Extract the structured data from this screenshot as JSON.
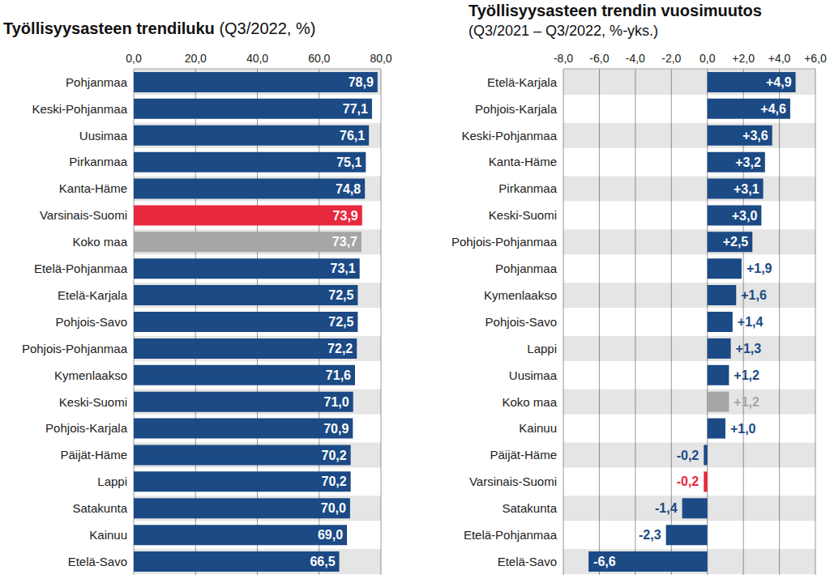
{
  "chart_data": [
    {
      "type": "bar",
      "orientation": "horizontal",
      "title": "Työllisyysasteen trendiluku",
      "subtitle": "(Q3/2022, %)",
      "categories": [
        "Pohjanmaa",
        "Keski-Pohjanmaa",
        "Uusimaa",
        "Pirkanmaa",
        "Kanta-Häme",
        "Varsinais-Suomi",
        "Koko maa",
        "Etelä-Pohjanmaa",
        "Etelä-Karjala",
        "Pohjois-Savo",
        "Pohjois-Pohjanmaa",
        "Kymenlaakso",
        "Keski-Suomi",
        "Pohjois-Karjala",
        "Päijät-Häme",
        "Lappi",
        "Satakunta",
        "Kainuu",
        "Etelä-Savo"
      ],
      "values": [
        78.9,
        77.1,
        76.1,
        75.1,
        74.8,
        73.9,
        73.7,
        73.1,
        72.5,
        72.5,
        72.2,
        71.6,
        71.0,
        70.9,
        70.2,
        70.2,
        70.0,
        69.0,
        66.5
      ],
      "value_labels": [
        "78,9",
        "77,1",
        "76,1",
        "75,1",
        "74,8",
        "73,9",
        "73,7",
        "73,1",
        "72,5",
        "72,5",
        "72,2",
        "71,6",
        "71,0",
        "70,9",
        "70,2",
        "70,2",
        "70,0",
        "69,0",
        "66,5"
      ],
      "colors": [
        "#1b4a85",
        "#1b4a85",
        "#1b4a85",
        "#1b4a85",
        "#1b4a85",
        "#e8283c",
        "#a6a6a6",
        "#1b4a85",
        "#1b4a85",
        "#1b4a85",
        "#1b4a85",
        "#1b4a85",
        "#1b4a85",
        "#1b4a85",
        "#1b4a85",
        "#1b4a85",
        "#1b4a85",
        "#1b4a85",
        "#1b4a85"
      ],
      "xlim": [
        0,
        80
      ],
      "xticks": [
        {
          "value": 0,
          "label": "0,0"
        },
        {
          "value": 20,
          "label": "20,0"
        },
        {
          "value": 40,
          "label": "40,0"
        },
        {
          "value": 60,
          "label": "60,0"
        },
        {
          "value": 80,
          "label": "80,0"
        }
      ],
      "grid": true,
      "data_labels": true
    },
    {
      "type": "bar",
      "orientation": "horizontal",
      "title": "Työllisyysasteen trendin vuosimuutos",
      "subtitle": "(Q3/2021 – Q3/2022, %-yks.)",
      "categories": [
        "Etelä-Karjala",
        "Pohjois-Karjala",
        "Keski-Pohjanmaa",
        "Kanta-Häme",
        "Pirkanmaa",
        "Keski-Suomi",
        "Pohjois-Pohjanmaa",
        "Pohjanmaa",
        "Kymenlaakso",
        "Pohjois-Savo",
        "Lappi",
        "Uusimaa",
        "Koko maa",
        "Kainuu",
        "Päijät-Häme",
        "Varsinais-Suomi",
        "Satakunta",
        "Etelä-Pohjanmaa",
        "Etelä-Savo"
      ],
      "values": [
        4.9,
        4.6,
        3.6,
        3.2,
        3.1,
        3.0,
        2.5,
        1.9,
        1.6,
        1.4,
        1.3,
        1.2,
        1.2,
        1.0,
        -0.2,
        -0.2,
        -1.4,
        -2.3,
        -6.6
      ],
      "value_labels": [
        "+4,9",
        "+4,6",
        "+3,6",
        "+3,2",
        "+3,1",
        "+3,0",
        "+2,5",
        "+1,9",
        "+1,6",
        "+1,4",
        "+1,3",
        "+1,2",
        "+1,2",
        "+1,0",
        "-0,2",
        "-0,2",
        "-1,4",
        "-2,3",
        "-6,6"
      ],
      "colors": [
        "#1b4a85",
        "#1b4a85",
        "#1b4a85",
        "#1b4a85",
        "#1b4a85",
        "#1b4a85",
        "#1b4a85",
        "#1b4a85",
        "#1b4a85",
        "#1b4a85",
        "#1b4a85",
        "#1b4a85",
        "#a6a6a6",
        "#1b4a85",
        "#1b4a85",
        "#e8283c",
        "#1b4a85",
        "#1b4a85",
        "#1b4a85"
      ],
      "xlim": [
        -8,
        6
      ],
      "xticks": [
        {
          "value": -8,
          "label": "-8,0"
        },
        {
          "value": -6,
          "label": "-6,0"
        },
        {
          "value": -4,
          "label": "-4,0"
        },
        {
          "value": -2,
          "label": "-2,0"
        },
        {
          "value": 0,
          "label": "0,0"
        },
        {
          "value": 2,
          "label": "+2,0"
        },
        {
          "value": 4,
          "label": "+4,0"
        },
        {
          "value": 6,
          "label": "+6,0"
        }
      ],
      "grid": true,
      "data_labels": true
    }
  ]
}
